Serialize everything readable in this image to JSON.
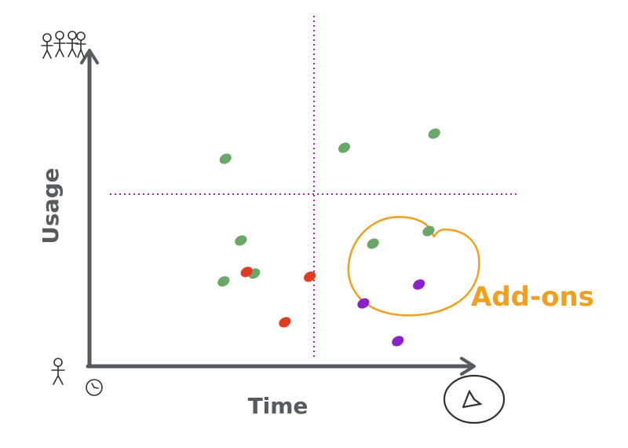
{
  "chart_data": {
    "type": "scatter",
    "title": "",
    "xlabel": "Time",
    "ylabel": "Usage",
    "annotation": "Add-ons",
    "grid": false,
    "legend": "none",
    "series": [
      {
        "color": "#6aa86a",
        "points": [
          [
            0.355,
            0.66
          ],
          [
            0.395,
            0.4
          ],
          [
            0.35,
            0.27
          ],
          [
            0.43,
            0.295
          ],
          [
            0.665,
            0.695
          ],
          [
            0.74,
            0.39
          ],
          [
            0.885,
            0.43
          ],
          [
            0.9,
            0.74
          ]
        ]
      },
      {
        "color": "#e03c22",
        "points": [
          [
            0.41,
            0.3
          ],
          [
            0.51,
            0.14
          ],
          [
            0.575,
            0.285
          ]
        ]
      },
      {
        "color": "#8a22cc",
        "points": [
          [
            0.715,
            0.2
          ],
          [
            0.805,
            0.08
          ],
          [
            0.86,
            0.26
          ]
        ]
      }
    ]
  },
  "icons": {
    "y_top": "group-of-people-icon",
    "y_bottom": "single-person-icon",
    "x_start": "small-clock-icon",
    "x_end": "large-clock-icon"
  }
}
